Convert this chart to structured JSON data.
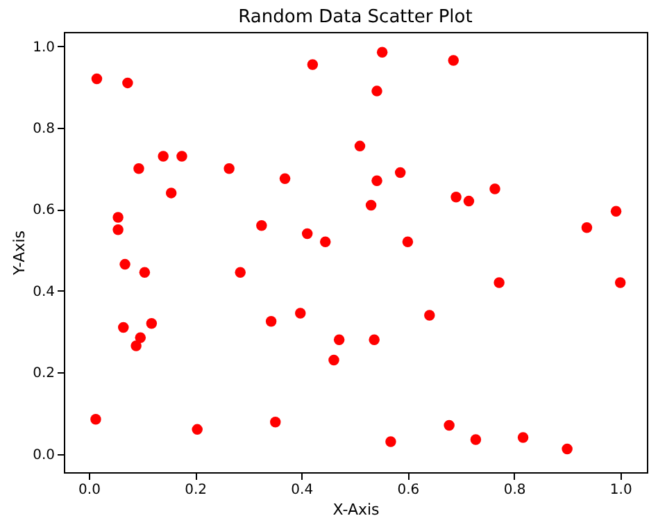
{
  "chart_data": {
    "type": "scatter",
    "title": "Random Data Scatter Plot",
    "xlabel": "X-Axis",
    "ylabel": "Y-Axis",
    "x": [
      0.013,
      0.015,
      0.073,
      0.094,
      0.14,
      0.175,
      0.155,
      0.055,
      0.055,
      0.068,
      0.105,
      0.065,
      0.118,
      0.097,
      0.089,
      0.204,
      0.264,
      0.285,
      0.325,
      0.343,
      0.351,
      0.369,
      0.398,
      0.411,
      0.421,
      0.445,
      0.461,
      0.471,
      0.51,
      0.531,
      0.542,
      0.542,
      0.552,
      0.537,
      0.568,
      0.586,
      0.6,
      0.641,
      0.686,
      0.691,
      0.715,
      0.764,
      0.772,
      0.678,
      0.728,
      0.817,
      0.9,
      0.937,
      0.992,
      1.0
    ],
    "series": [
      {
        "color": "#ff0000",
        "values": [
          0.085,
          0.92,
          0.91,
          0.7,
          0.73,
          0.73,
          0.64,
          0.58,
          0.55,
          0.465,
          0.445,
          0.31,
          0.32,
          0.285,
          0.265,
          0.06,
          0.7,
          0.445,
          0.56,
          0.325,
          0.078,
          0.675,
          0.345,
          0.54,
          0.955,
          0.52,
          0.23,
          0.28,
          0.755,
          0.61,
          0.67,
          0.89,
          0.985,
          0.28,
          0.03,
          0.69,
          0.52,
          0.34,
          0.965,
          0.63,
          0.62,
          0.65,
          0.42,
          0.07,
          0.035,
          0.04,
          0.012,
          0.555,
          0.595,
          0.42
        ]
      }
    ],
    "xlim": [
      -0.047,
      1.05
    ],
    "ylim": [
      -0.045,
      1.035
    ],
    "xticks": [
      {
        "value": 0,
        "label": "0.0"
      },
      0.2,
      0.4,
      0.6,
      0.8,
      {
        "value": 1,
        "label": "1.0"
      }
    ],
    "yticks": [
      {
        "value": 0,
        "label": "0.0"
      },
      0.2,
      0.4,
      0.6,
      0.8,
      {
        "value": 1,
        "label": "1.0"
      }
    ],
    "marker": "circle",
    "grid": false
  }
}
